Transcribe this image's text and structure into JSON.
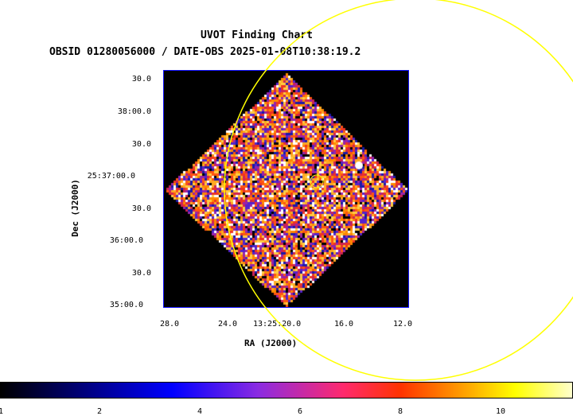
{
  "title": "UVOT Finding Chart",
  "subtitle": "OBSID 01280056000 / DATE-OBS 2025-01-08T10:38:19.2",
  "axes": {
    "xlabel": "RA (J2000)",
    "ylabel": "Dec (J2000)",
    "xticks": [
      "28.0",
      "24.0",
      "13:25:20.0",
      "16.0",
      "12.0"
    ],
    "yticks": [
      "30.0",
      "38:00.0",
      "30.0",
      "25:37:00.0",
      "30.0",
      "36:00.0",
      "30.0",
      "35:00.0"
    ]
  },
  "colorbar": {
    "ticks": [
      "1",
      "2",
      "4",
      "6",
      "8",
      "10"
    ]
  },
  "colors": {
    "frame": "#1010ff",
    "circle": "#ffff00",
    "bright_source": "#ffffff"
  }
}
